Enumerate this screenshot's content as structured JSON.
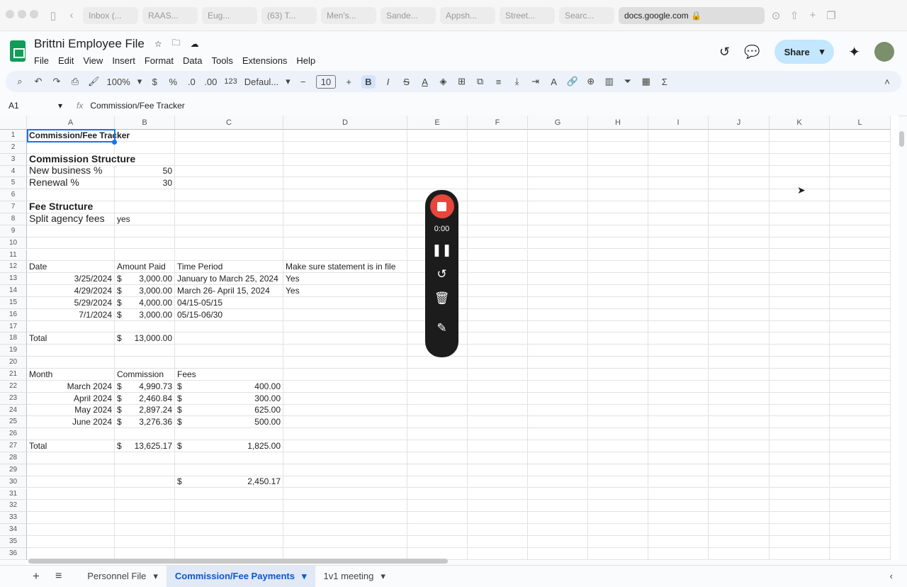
{
  "browser": {
    "tabs": [
      "Inbox (...",
      "RAAS...",
      "Eug...",
      "(63) T...",
      "Men's...",
      "Sande...",
      "Appsh...",
      "Street...",
      "Searc..."
    ],
    "active_tab": "docs.google.com"
  },
  "doc": {
    "title": "Brittni Employee File",
    "menu": [
      "File",
      "Edit",
      "View",
      "Insert",
      "Format",
      "Data",
      "Tools",
      "Extensions",
      "Help"
    ],
    "share": "Share"
  },
  "toolbar": {
    "zoom": "100%",
    "currency": "$",
    "percent": "%",
    "dec_minus": ".0",
    "dec_plus": ".00",
    "format123": "123",
    "font": "Defaul...",
    "font_size": "10",
    "bold": "B",
    "italic": "I"
  },
  "formula": {
    "cell_ref": "A1",
    "fx": "fx",
    "value": "Commission/Fee Tracker"
  },
  "columns": [
    "A",
    "B",
    "C",
    "D",
    "E",
    "F",
    "G",
    "H",
    "I",
    "J",
    "K",
    "L"
  ],
  "row_count": 36,
  "cells": [
    {
      "r": 1,
      "c": 0,
      "v": "Commission/Fee Tracker",
      "s": "bold ov"
    },
    {
      "r": 3,
      "c": 0,
      "v": "Commission Structure",
      "s": "bold big ov"
    },
    {
      "r": 4,
      "c": 0,
      "v": "New business %",
      "s": "big"
    },
    {
      "r": 4,
      "c": 1,
      "v": "50",
      "s": "r"
    },
    {
      "r": 5,
      "c": 0,
      "v": "Renewal %",
      "s": "big"
    },
    {
      "r": 5,
      "c": 1,
      "v": "30",
      "s": "r"
    },
    {
      "r": 7,
      "c": 0,
      "v": "Fee Structure",
      "s": "bold big"
    },
    {
      "r": 8,
      "c": 0,
      "v": "Split agency fees",
      "s": "big"
    },
    {
      "r": 8,
      "c": 1,
      "v": "yes"
    },
    {
      "r": 12,
      "c": 0,
      "v": "Date"
    },
    {
      "r": 12,
      "c": 1,
      "v": "Amount Paid"
    },
    {
      "r": 12,
      "c": 2,
      "v": "Time Period"
    },
    {
      "r": 12,
      "c": 3,
      "v": "Make sure statement is in file"
    },
    {
      "r": 13,
      "c": 0,
      "v": "3/25/2024",
      "s": "r"
    },
    {
      "r": 13,
      "c": 1,
      "cur": "3,000.00"
    },
    {
      "r": 13,
      "c": 2,
      "v": "January to March 25, 2024"
    },
    {
      "r": 13,
      "c": 3,
      "v": "Yes"
    },
    {
      "r": 14,
      "c": 0,
      "v": "4/29/2024",
      "s": "r"
    },
    {
      "r": 14,
      "c": 1,
      "cur": "3,000.00"
    },
    {
      "r": 14,
      "c": 2,
      "v": "March 26- April 15, 2024"
    },
    {
      "r": 14,
      "c": 3,
      "v": "Yes"
    },
    {
      "r": 15,
      "c": 0,
      "v": "5/29/2024",
      "s": "r"
    },
    {
      "r": 15,
      "c": 1,
      "cur": "4,000.00"
    },
    {
      "r": 15,
      "c": 2,
      "v": "04/15-05/15"
    },
    {
      "r": 16,
      "c": 0,
      "v": "7/1/2024",
      "s": "r"
    },
    {
      "r": 16,
      "c": 1,
      "cur": "3,000.00"
    },
    {
      "r": 16,
      "c": 2,
      "v": "05/15-06/30"
    },
    {
      "r": 18,
      "c": 0,
      "v": "Total"
    },
    {
      "r": 18,
      "c": 1,
      "cur": "13,000.00"
    },
    {
      "r": 21,
      "c": 0,
      "v": "Month"
    },
    {
      "r": 21,
      "c": 1,
      "v": "Commission"
    },
    {
      "r": 21,
      "c": 2,
      "v": "Fees"
    },
    {
      "r": 22,
      "c": 0,
      "v": "March 2024",
      "s": "r"
    },
    {
      "r": 22,
      "c": 1,
      "cur": "4,990.73"
    },
    {
      "r": 22,
      "c": 2,
      "cur": "400.00"
    },
    {
      "r": 23,
      "c": 0,
      "v": "April 2024",
      "s": "r"
    },
    {
      "r": 23,
      "c": 1,
      "cur": "2,460.84"
    },
    {
      "r": 23,
      "c": 2,
      "cur": "300.00"
    },
    {
      "r": 24,
      "c": 0,
      "v": "May 2024",
      "s": "r"
    },
    {
      "r": 24,
      "c": 1,
      "cur": "2,897.24"
    },
    {
      "r": 24,
      "c": 2,
      "cur": "625.00"
    },
    {
      "r": 25,
      "c": 0,
      "v": "June 2024",
      "s": "r"
    },
    {
      "r": 25,
      "c": 1,
      "cur": "3,276.36"
    },
    {
      "r": 25,
      "c": 2,
      "cur": "500.00"
    },
    {
      "r": 27,
      "c": 0,
      "v": "Total"
    },
    {
      "r": 27,
      "c": 1,
      "cur": "13,625.17"
    },
    {
      "r": 27,
      "c": 2,
      "cur": "1,825.00"
    },
    {
      "r": 30,
      "c": 2,
      "cur": "2,450.17"
    }
  ],
  "currency_symbol": "$",
  "recorder": {
    "time": "0:00"
  },
  "sheets": {
    "add": "+",
    "list": "≡",
    "tabs": [
      "Personnel File",
      "Commission/Fee Payments",
      "1v1 meeting"
    ],
    "active": 1
  }
}
